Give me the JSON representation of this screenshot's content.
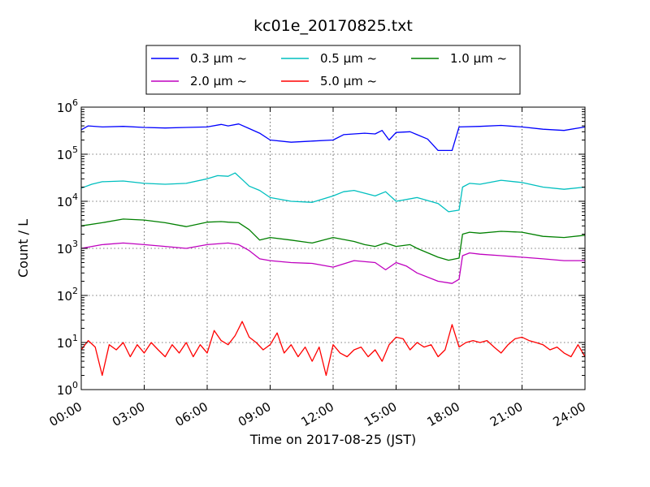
{
  "chart_data": {
    "type": "line",
    "title": "kc01e_20170825.txt",
    "xlabel": "Time on 2017-08-25 (JST)",
    "ylabel": "Count / L",
    "yscale": "log",
    "ylim": [
      1,
      1000000
    ],
    "xlim": [
      "00:00",
      "24:00"
    ],
    "grid": true,
    "legend_position": "top",
    "x_ticks": [
      "00:00",
      "03:00",
      "06:00",
      "09:00",
      "12:00",
      "15:00",
      "18:00",
      "21:00",
      "24:00"
    ],
    "y_ticks": [
      {
        "base": "10",
        "exp": "0",
        "value": 1
      },
      {
        "base": "10",
        "exp": "1",
        "value": 10
      },
      {
        "base": "10",
        "exp": "2",
        "value": 100
      },
      {
        "base": "10",
        "exp": "3",
        "value": 1000
      },
      {
        "base": "10",
        "exp": "4",
        "value": 10000
      },
      {
        "base": "10",
        "exp": "5",
        "value": 100000
      },
      {
        "base": "10",
        "exp": "6",
        "value": 1000000
      }
    ],
    "series": [
      {
        "name": "0.3 μm ~",
        "color": "#0000ff",
        "points": [
          [
            "00:00",
            330000
          ],
          [
            "00:20",
            400000
          ],
          [
            "01:00",
            380000
          ],
          [
            "02:00",
            390000
          ],
          [
            "03:00",
            370000
          ],
          [
            "04:00",
            360000
          ],
          [
            "05:00",
            370000
          ],
          [
            "06:00",
            380000
          ],
          [
            "06:40",
            430000
          ],
          [
            "07:00",
            400000
          ],
          [
            "07:30",
            440000
          ],
          [
            "08:00",
            350000
          ],
          [
            "08:30",
            280000
          ],
          [
            "09:00",
            200000
          ],
          [
            "10:00",
            180000
          ],
          [
            "11:00",
            190000
          ],
          [
            "12:00",
            200000
          ],
          [
            "12:30",
            260000
          ],
          [
            "13:00",
            270000
          ],
          [
            "13:30",
            280000
          ],
          [
            "14:00",
            270000
          ],
          [
            "14:20",
            320000
          ],
          [
            "14:40",
            200000
          ],
          [
            "15:00",
            290000
          ],
          [
            "15:40",
            300000
          ],
          [
            "16:00",
            260000
          ],
          [
            "16:30",
            210000
          ],
          [
            "17:00",
            120000
          ],
          [
            "17:40",
            120000
          ],
          [
            "18:00",
            380000
          ],
          [
            "19:00",
            390000
          ],
          [
            "20:00",
            410000
          ],
          [
            "21:00",
            380000
          ],
          [
            "22:00",
            340000
          ],
          [
            "23:00",
            320000
          ],
          [
            "24:00",
            380000
          ]
        ]
      },
      {
        "name": "0.5 μm ~",
        "color": "#00bfbf",
        "points": [
          [
            "00:00",
            19000
          ],
          [
            "00:30",
            23000
          ],
          [
            "01:00",
            26000
          ],
          [
            "02:00",
            27000
          ],
          [
            "03:00",
            24000
          ],
          [
            "04:00",
            23000
          ],
          [
            "05:00",
            24000
          ],
          [
            "06:00",
            30000
          ],
          [
            "06:30",
            35000
          ],
          [
            "07:00",
            34000
          ],
          [
            "07:20",
            40000
          ],
          [
            "07:40",
            29000
          ],
          [
            "08:00",
            21000
          ],
          [
            "08:30",
            17000
          ],
          [
            "09:00",
            12000
          ],
          [
            "10:00",
            10000
          ],
          [
            "11:00",
            9500
          ],
          [
            "12:00",
            13000
          ],
          [
            "12:30",
            16000
          ],
          [
            "13:00",
            17000
          ],
          [
            "14:00",
            13000
          ],
          [
            "14:30",
            16000
          ],
          [
            "15:00",
            10000
          ],
          [
            "16:00",
            12000
          ],
          [
            "17:00",
            9000
          ],
          [
            "17:30",
            6000
          ],
          [
            "18:00",
            6500
          ],
          [
            "18:10",
            20000
          ],
          [
            "18:30",
            24000
          ],
          [
            "19:00",
            23000
          ],
          [
            "20:00",
            28000
          ],
          [
            "21:00",
            25000
          ],
          [
            "22:00",
            20000
          ],
          [
            "23:00",
            18000
          ],
          [
            "24:00",
            20000
          ]
        ]
      },
      {
        "name": "1.0 μm ~",
        "color": "#008000",
        "points": [
          [
            "00:00",
            3000
          ],
          [
            "01:00",
            3500
          ],
          [
            "02:00",
            4200
          ],
          [
            "03:00",
            4000
          ],
          [
            "04:00",
            3500
          ],
          [
            "05:00",
            2900
          ],
          [
            "06:00",
            3600
          ],
          [
            "06:40",
            3700
          ],
          [
            "07:00",
            3600
          ],
          [
            "07:30",
            3500
          ],
          [
            "08:00",
            2500
          ],
          [
            "08:30",
            1500
          ],
          [
            "09:00",
            1700
          ],
          [
            "10:00",
            1500
          ],
          [
            "11:00",
            1300
          ],
          [
            "12:00",
            1700
          ],
          [
            "13:00",
            1400
          ],
          [
            "13:30",
            1200
          ],
          [
            "14:00",
            1100
          ],
          [
            "14:30",
            1300
          ],
          [
            "15:00",
            1100
          ],
          [
            "15:40",
            1200
          ],
          [
            "16:00",
            1000
          ],
          [
            "17:00",
            650
          ],
          [
            "17:30",
            560
          ],
          [
            "18:00",
            620
          ],
          [
            "18:10",
            2000
          ],
          [
            "18:30",
            2200
          ],
          [
            "19:00",
            2100
          ],
          [
            "20:00",
            2300
          ],
          [
            "21:00",
            2200
          ],
          [
            "22:00",
            1800
          ],
          [
            "23:00",
            1700
          ],
          [
            "24:00",
            1900
          ]
        ]
      },
      {
        "name": "2.0 μm ~",
        "color": "#bf00bf",
        "points": [
          [
            "00:00",
            1000
          ],
          [
            "01:00",
            1200
          ],
          [
            "02:00",
            1300
          ],
          [
            "03:00",
            1200
          ],
          [
            "04:00",
            1100
          ],
          [
            "05:00",
            1000
          ],
          [
            "06:00",
            1200
          ],
          [
            "07:00",
            1300
          ],
          [
            "07:30",
            1200
          ],
          [
            "08:00",
            900
          ],
          [
            "08:30",
            600
          ],
          [
            "09:00",
            550
          ],
          [
            "10:00",
            500
          ],
          [
            "11:00",
            480
          ],
          [
            "12:00",
            400
          ],
          [
            "13:00",
            550
          ],
          [
            "14:00",
            500
          ],
          [
            "14:30",
            350
          ],
          [
            "15:00",
            500
          ],
          [
            "15:30",
            420
          ],
          [
            "16:00",
            300
          ],
          [
            "17:00",
            200
          ],
          [
            "17:40",
            180
          ],
          [
            "18:00",
            220
          ],
          [
            "18:10",
            700
          ],
          [
            "18:30",
            800
          ],
          [
            "19:00",
            750
          ],
          [
            "20:00",
            700
          ],
          [
            "21:00",
            650
          ],
          [
            "22:00",
            600
          ],
          [
            "23:00",
            550
          ],
          [
            "24:00",
            550
          ]
        ]
      },
      {
        "name": "5.0 μm ~",
        "color": "#ff0000",
        "points": [
          [
            "00:00",
            7
          ],
          [
            "00:20",
            11
          ],
          [
            "00:40",
            8
          ],
          [
            "01:00",
            2
          ],
          [
            "01:20",
            9
          ],
          [
            "01:40",
            7
          ],
          [
            "02:00",
            10
          ],
          [
            "02:20",
            5
          ],
          [
            "02:40",
            9
          ],
          [
            "03:00",
            6
          ],
          [
            "03:20",
            10
          ],
          [
            "03:40",
            7
          ],
          [
            "04:00",
            5
          ],
          [
            "04:20",
            9
          ],
          [
            "04:40",
            6
          ],
          [
            "05:00",
            10
          ],
          [
            "05:20",
            5
          ],
          [
            "05:40",
            9
          ],
          [
            "06:00",
            6
          ],
          [
            "06:20",
            18
          ],
          [
            "06:40",
            11
          ],
          [
            "07:00",
            9
          ],
          [
            "07:20",
            14
          ],
          [
            "07:40",
            28
          ],
          [
            "08:00",
            13
          ],
          [
            "08:20",
            10
          ],
          [
            "08:40",
            7
          ],
          [
            "09:00",
            9
          ],
          [
            "09:20",
            16
          ],
          [
            "09:40",
            6
          ],
          [
            "10:00",
            9
          ],
          [
            "10:20",
            5
          ],
          [
            "10:40",
            8
          ],
          [
            "11:00",
            4
          ],
          [
            "11:20",
            8
          ],
          [
            "11:40",
            2
          ],
          [
            "12:00",
            9
          ],
          [
            "12:20",
            6
          ],
          [
            "12:40",
            5
          ],
          [
            "13:00",
            7
          ],
          [
            "13:20",
            8
          ],
          [
            "13:40",
            5
          ],
          [
            "14:00",
            7
          ],
          [
            "14:20",
            4
          ],
          [
            "14:40",
            9
          ],
          [
            "15:00",
            13
          ],
          [
            "15:20",
            12
          ],
          [
            "15:40",
            7
          ],
          [
            "16:00",
            10
          ],
          [
            "16:20",
            8
          ],
          [
            "16:40",
            9
          ],
          [
            "17:00",
            5
          ],
          [
            "17:20",
            7
          ],
          [
            "17:40",
            24
          ],
          [
            "18:00",
            8
          ],
          [
            "18:20",
            10
          ],
          [
            "18:40",
            11
          ],
          [
            "19:00",
            10
          ],
          [
            "19:20",
            11
          ],
          [
            "19:40",
            8
          ],
          [
            "20:00",
            6
          ],
          [
            "20:20",
            9
          ],
          [
            "20:40",
            12
          ],
          [
            "21:00",
            13
          ],
          [
            "21:20",
            11
          ],
          [
            "21:40",
            10
          ],
          [
            "22:00",
            9
          ],
          [
            "22:20",
            7
          ],
          [
            "22:40",
            8
          ],
          [
            "23:00",
            6
          ],
          [
            "23:20",
            5
          ],
          [
            "23:40",
            9
          ],
          [
            "24:00",
            5
          ]
        ]
      }
    ]
  }
}
